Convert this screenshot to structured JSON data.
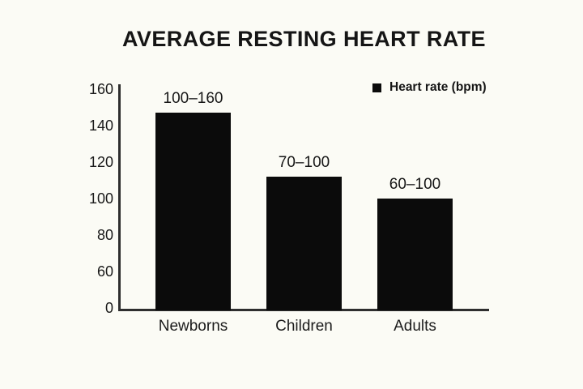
{
  "chart_data": {
    "type": "bar",
    "title": "AVERAGE RESTING HEART RATE",
    "legend": {
      "label": "Heart rate (bpm)",
      "position": "top-right"
    },
    "categories": [
      "Newborns",
      "Children",
      "Adults"
    ],
    "bars": [
      {
        "category": "Newborns",
        "range_label": "100–160",
        "range_bpm": [
          100,
          160
        ],
        "bar_top_value": 147
      },
      {
        "category": "Children",
        "range_label": "70–100",
        "range_bpm": [
          70,
          100
        ],
        "bar_top_value": 112
      },
      {
        "category": "Adults",
        "range_label": "60–100",
        "range_bpm": [
          60,
          100
        ],
        "bar_top_value": 100
      }
    ],
    "y_axis": {
      "ticks": [
        160,
        140,
        120,
        100,
        80,
        60,
        0
      ],
      "range": [
        0,
        160
      ],
      "layout_note": "ticks rendered equally spaced; 0–60 segment compressed"
    },
    "x_axis": {
      "label": ""
    },
    "grid": false,
    "legend_position": "top-right",
    "colors": {
      "bar": "#0b0b0b",
      "background": "#fbfbf5",
      "text": "#1b1b1b",
      "axis": "#2e2e2e"
    }
  }
}
